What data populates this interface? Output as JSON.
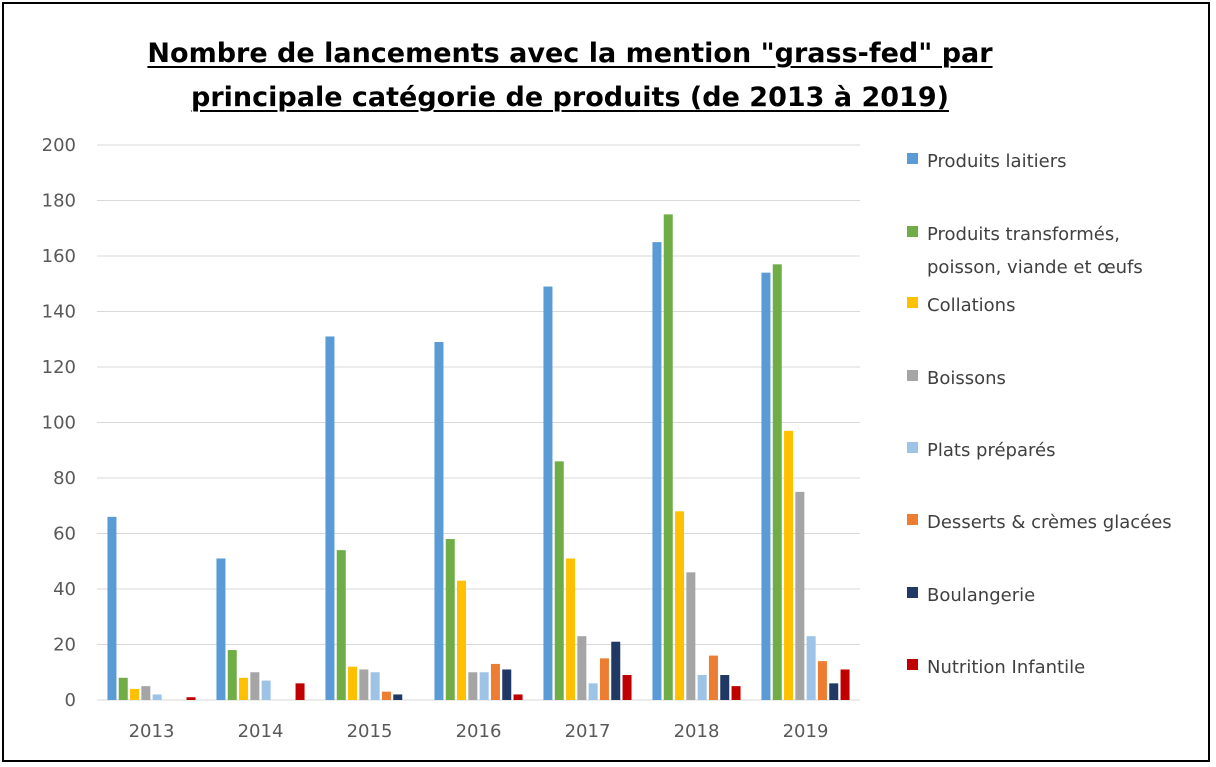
{
  "chart_data": {
    "type": "bar",
    "title_line1": "Nombre de lancements avec la mention \"grass-fed\" par",
    "title_line2": "principale catégorie de produits (de 2013 à 2019)",
    "categories": [
      "2013",
      "2014",
      "2015",
      "2016",
      "2017",
      "2018",
      "2019"
    ],
    "ylim": [
      0,
      200
    ],
    "yticks": [
      0,
      20,
      40,
      60,
      80,
      100,
      120,
      140,
      160,
      180,
      200
    ],
    "grid": true,
    "legend_position": "right",
    "series": [
      {
        "name": "Produits laitiers",
        "color": "#5b9bd5",
        "values": [
          66,
          51,
          131,
          129,
          149,
          165,
          154
        ]
      },
      {
        "name": "Produits transformés, poisson, viande et œufs",
        "legend_lines": [
          "Produits transformés,",
          "poisson, viande et œufs"
        ],
        "color": "#70ad47",
        "values": [
          8,
          18,
          54,
          58,
          86,
          175,
          157
        ]
      },
      {
        "name": "Collations",
        "color": "#ffc000",
        "values": [
          4,
          8,
          12,
          43,
          51,
          68,
          97
        ]
      },
      {
        "name": "Boissons",
        "color": "#a5a5a5",
        "values": [
          5,
          10,
          11,
          10,
          23,
          46,
          75
        ]
      },
      {
        "name": "Plats préparés",
        "color": "#9dc3e6",
        "values": [
          2,
          7,
          10,
          10,
          6,
          9,
          23
        ]
      },
      {
        "name": "Desserts & crèmes glacées",
        "color": "#ed7d31",
        "values": [
          0,
          0,
          3,
          13,
          15,
          16,
          14
        ]
      },
      {
        "name": "Boulangerie",
        "color": "#203864",
        "values": [
          0,
          0,
          2,
          11,
          21,
          9,
          6
        ]
      },
      {
        "name": "Nutrition Infantile",
        "color": "#c00000",
        "values": [
          1,
          6,
          0,
          2,
          9,
          5,
          11
        ]
      }
    ]
  }
}
